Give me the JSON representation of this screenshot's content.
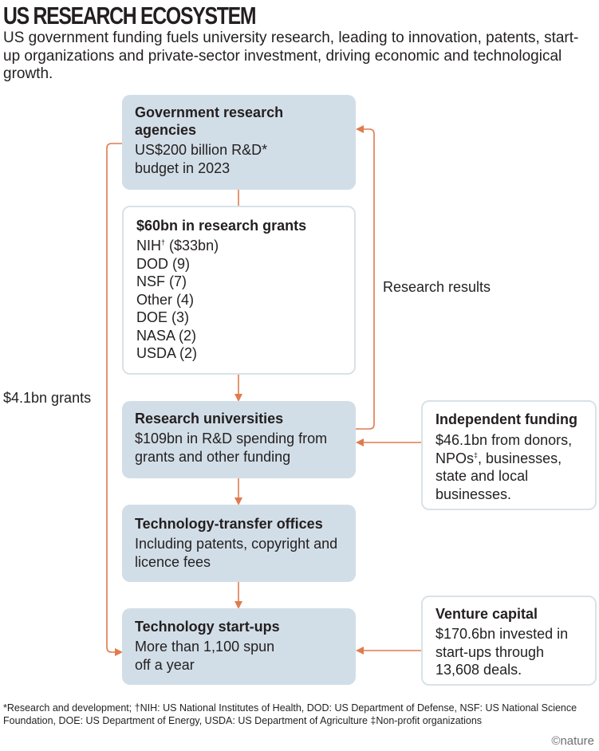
{
  "header": {
    "title": "US RESEARCH ECOSYSTEM",
    "subtitle": "US government funding fuels university research, leading to innovation, patents, start-up organizations and private-sector investment, driving economic and technological growth."
  },
  "colors": {
    "arrow": "#e07b4e",
    "box_fill": "#d2dee7",
    "box_outline": "#d9e2e8",
    "text": "#231f20"
  },
  "boxes": {
    "government": {
      "title": "Government research agencies",
      "body": "US$200 billion R&D* budget in 2023"
    },
    "grants": {
      "title": "$60bn in research grants",
      "items": [
        {
          "name": "NIH",
          "mark": "†",
          "value": "($33bn)"
        },
        {
          "name": "DOD",
          "mark": "",
          "value": "(9)"
        },
        {
          "name": "NSF",
          "mark": "",
          "value": "(7)"
        },
        {
          "name": "Other",
          "mark": "",
          "value": "(4)"
        },
        {
          "name": "DOE",
          "mark": "",
          "value": "(3)"
        },
        {
          "name": "NASA",
          "mark": "",
          "value": "(2)"
        },
        {
          "name": "USDA",
          "mark": "",
          "value": "(2)"
        }
      ]
    },
    "universities": {
      "title": "Research universities",
      "body": "$109bn in R&D spending from grants and other funding"
    },
    "tto": {
      "title": "Technology-transfer offices",
      "body": "Including patents, copyright and licence fees"
    },
    "startups": {
      "title": "Technology start-ups",
      "body": "More than 1,100 spun off a year"
    },
    "independent": {
      "title": "Independent funding",
      "body_pre": "$46.1bn from donors, NPOs",
      "body_mark": "‡",
      "body_post": ", businesses, state and local businesses."
    },
    "venture": {
      "title": "Venture capital",
      "body": "$170.6bn invested in start-ups through 13,608 deals."
    }
  },
  "labels": {
    "research_results": "Research results",
    "grants_41": "$4.1bn grants"
  },
  "footnote": "*Research and development; †NIH: US National Institutes of Health, DOD: US Department of Defense, NSF: US National Science Foundation, DOE: US Department of Energy, USDA: US Department of Agriculture ‡Non-profit organizations",
  "logo": "©nature"
}
